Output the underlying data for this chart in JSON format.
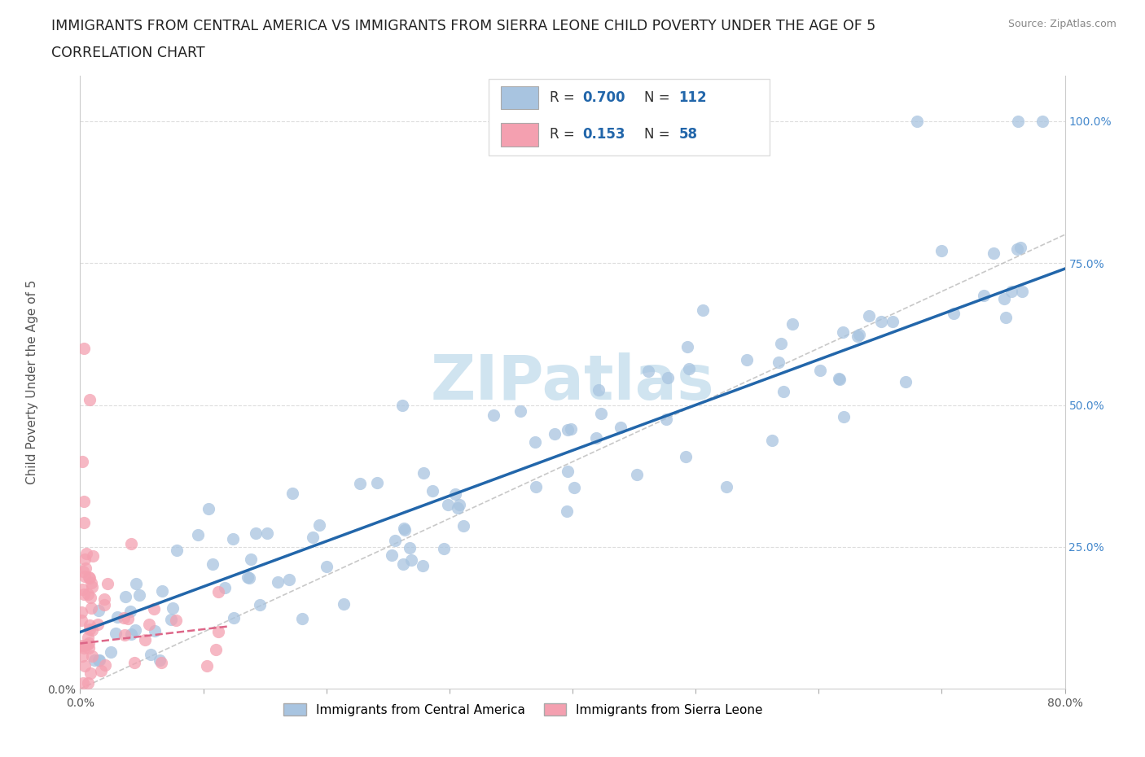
{
  "title_line1": "IMMIGRANTS FROM CENTRAL AMERICA VS IMMIGRANTS FROM SIERRA LEONE CHILD POVERTY UNDER THE AGE OF 5",
  "title_line2": "CORRELATION CHART",
  "source": "Source: ZipAtlas.com",
  "ylabel": "Child Poverty Under the Age of 5",
  "legend_label1": "Immigrants from Central America",
  "legend_label2": "Immigrants from Sierra Leone",
  "R1": 0.7,
  "N1": 112,
  "R2": 0.153,
  "N2": 58,
  "color1": "#a8c4e0",
  "color2": "#f4a0b0",
  "trendline1_color": "#2266aa",
  "trendline2_color": "#dd6688",
  "watermark": "ZIPatlas",
  "watermark_color": "#d0e4f0",
  "xlim": [
    0.0,
    0.8
  ],
  "ylim": [
    0.0,
    1.08
  ],
  "background_color": "#ffffff",
  "grid_color": "#dddddd",
  "title_fontsize": 12.5,
  "axis_label_fontsize": 11,
  "tick_fontsize": 10,
  "right_tick_color": "#4488cc",
  "legend_box_color": "#dddddd",
  "trendline1_slope": 0.8,
  "trendline1_intercept": 0.1,
  "trendline2_slope": 0.25,
  "trendline2_intercept": 0.08
}
